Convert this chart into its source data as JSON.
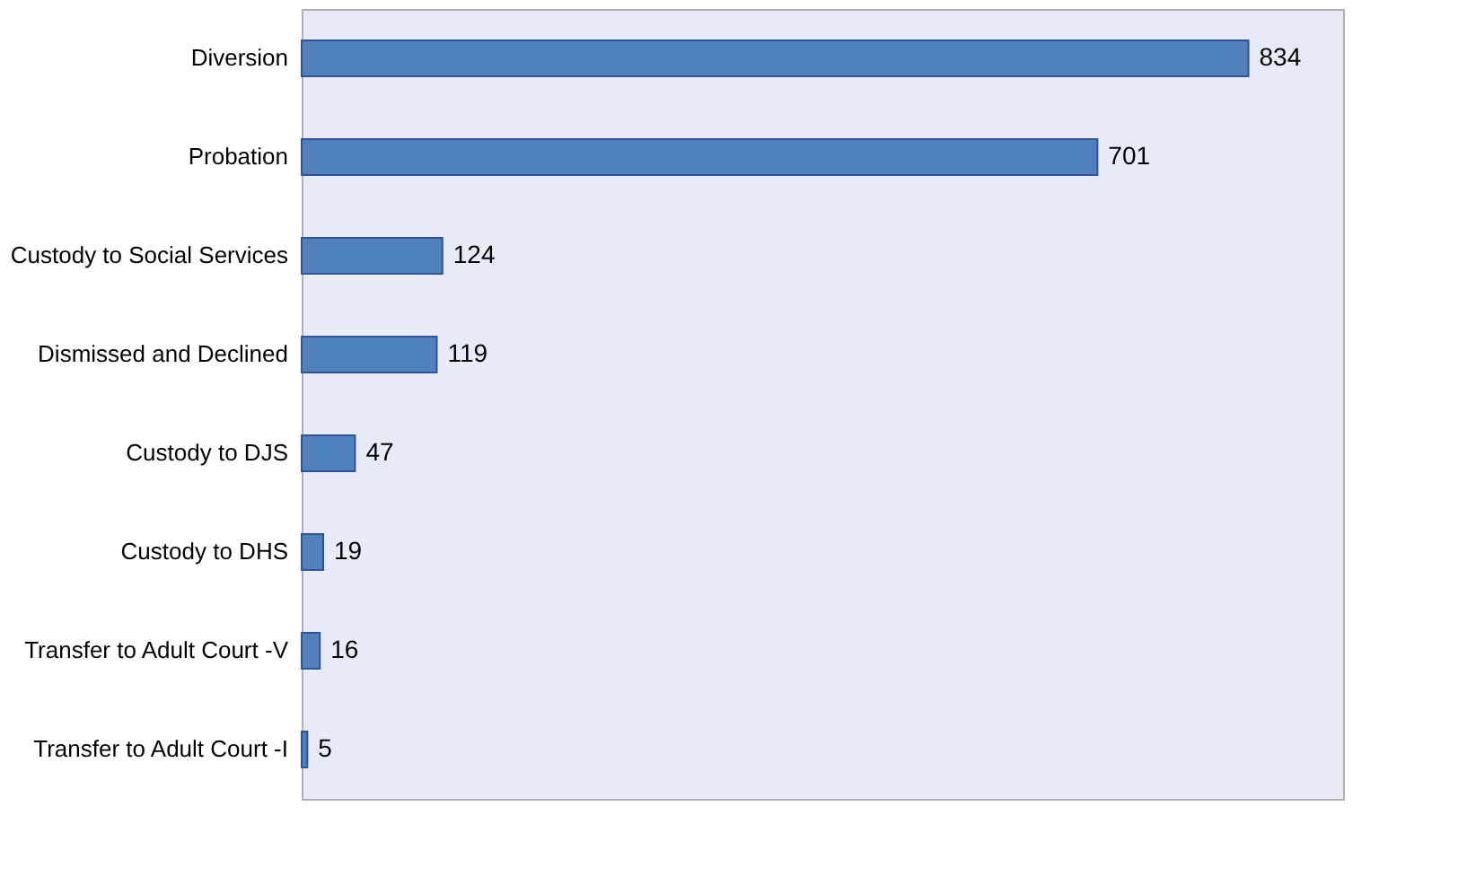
{
  "chart_data": {
    "type": "bar",
    "orientation": "horizontal",
    "categories": [
      "Diversion",
      "Probation",
      "Custody to Social Services",
      "Dismissed and Declined",
      "Custody to DJS",
      "Custody to DHS",
      "Transfer to Adult Court -V",
      "Transfer to Adult Court -I"
    ],
    "values": [
      834,
      701,
      124,
      119,
      47,
      19,
      16,
      5
    ],
    "color": "#4f81bd",
    "data_labels": true
  }
}
